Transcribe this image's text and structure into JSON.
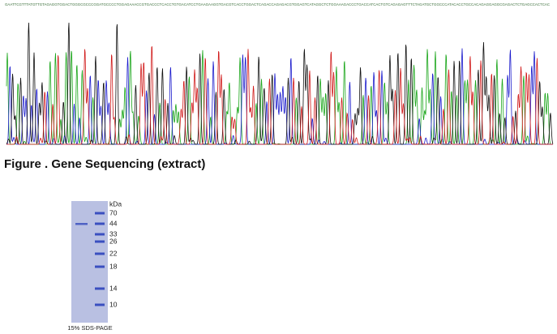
{
  "sequence": {
    "bases": "GAATTCGTTTATGTTGTAGAGGTGGACTGGGCGCCCGGATGCCCCTGGAGAAACCGTGACCCTCACCTGTGACATCCTGAAGAAGGTGACGTCACCTGGACTCAGACCAGAGACGTGGAGTCATAGGCTCTGGAAAGACCCTGACCATCACTGTCAGAGAGTTTCTAGATGCTGGCCCATACACCTGCCACAGAGGAGGCGAGACTCTGAGCCACTCAC",
    "caption": "Figure . Gene Sequencing (extract)"
  },
  "gel": {
    "unit": "kDa",
    "markers": [
      "70",
      "44",
      "33",
      "26",
      "22",
      "18",
      "14",
      "10"
    ],
    "caption": "15% SDS-PAGE"
  }
}
